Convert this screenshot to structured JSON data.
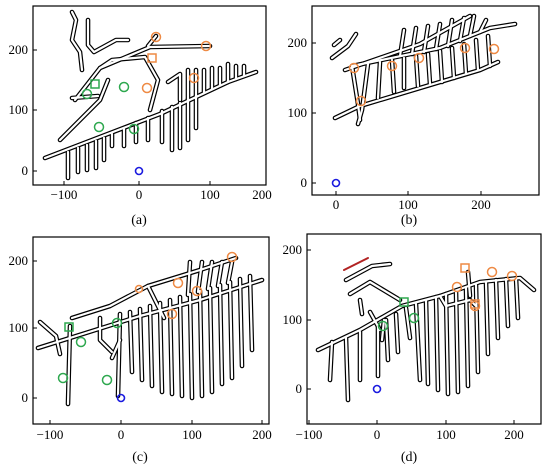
{
  "colors": {
    "tunnel_outline": "#000000",
    "tunnel_fill": "#ffffff",
    "orange_marker": "#ee8a44",
    "green_marker": "#2ea84f",
    "blue_origin": "#1a1adf",
    "red_segment": "#b22222"
  },
  "panels": [
    {
      "caption": "(a)",
      "x_ticks": [
        "−100",
        "0",
        "100",
        "200"
      ],
      "y_ticks": [
        "0",
        "100",
        "200"
      ],
      "origin_marker": "blue-circle",
      "orange_markers": 7,
      "green_markers": 6
    },
    {
      "caption": "(b)",
      "x_ticks": [
        "0",
        "100",
        "200"
      ],
      "y_ticks": [
        "0",
        "100",
        "200"
      ],
      "origin_marker": "blue-circle",
      "orange_markers": 6,
      "green_markers": 0
    },
    {
      "caption": "(c)",
      "x_ticks": [
        "−100",
        "0",
        "100",
        "200"
      ],
      "y_ticks": [
        "0",
        "100",
        "200"
      ],
      "origin_marker": "blue-circle",
      "orange_markers": 5,
      "green_markers": 6
    },
    {
      "caption": "(d)",
      "x_ticks": [
        "−100",
        "0",
        "100",
        "200"
      ],
      "y_ticks": [
        "0",
        "100",
        "200"
      ],
      "origin_marker": "blue-circle",
      "orange_markers": 7,
      "green_markers": 4
    }
  ]
}
